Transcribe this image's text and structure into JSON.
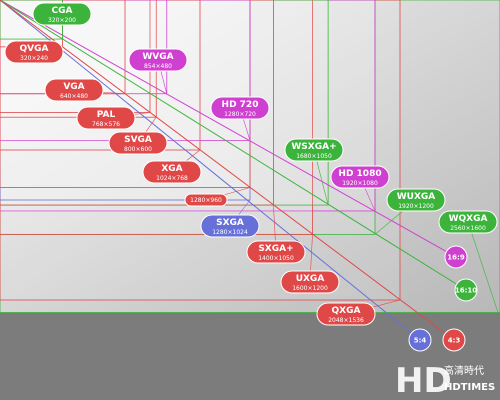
{
  "bubbles": [
    {
      "name": "CGA",
      "resolution": "320×200",
      "color": "#3cb43c"
    },
    {
      "name": "QVGA",
      "resolution": "320×240",
      "color": "#e04848"
    },
    {
      "name": "WVGA",
      "resolution": "854×480",
      "color": "#d040d0"
    },
    {
      "name": "VGA",
      "resolution": "640×480",
      "color": "#e04848"
    },
    {
      "name": "PAL",
      "resolution": "768×576",
      "color": "#e04848"
    },
    {
      "name": "HD 720",
      "resolution": "1280×720",
      "color": "#d040d0"
    },
    {
      "name": "SVGA",
      "resolution": "800×600",
      "color": "#e04848"
    },
    {
      "name": "WSXGA+",
      "resolution": "1680×1050",
      "color": "#3cb43c"
    },
    {
      "name": "XGA",
      "resolution": "1024×768",
      "color": "#e04848"
    },
    {
      "name": "HD 1080",
      "resolution": "1920×1080",
      "color": "#d040d0"
    },
    {
      "resolution": "1280×960",
      "color": "#e04848"
    },
    {
      "name": "WUXGA",
      "resolution": "1920×1200",
      "color": "#3cb43c"
    },
    {
      "name": "SXGA",
      "resolution": "1280×1024",
      "color": "#6670d8"
    },
    {
      "name": "WQXGA",
      "resolution": "2560×1600",
      "color": "#3cb43c"
    },
    {
      "name": "SXGA+",
      "resolution": "1400×1050",
      "color": "#e04848"
    },
    {
      "name": "UXGA",
      "resolution": "1600×1200",
      "color": "#e04848"
    },
    {
      "name": "QXGA",
      "resolution": "2048×1536",
      "color": "#e04848"
    }
  ],
  "aspect_ratios": [
    {
      "label": "16:9",
      "color": "#d040d0"
    },
    {
      "label": "16:10",
      "color": "#3cb43c"
    },
    {
      "label": "5:4",
      "color": "#6670d8"
    },
    {
      "label": "4:3",
      "color": "#e04848"
    }
  ],
  "logo": {
    "mark": "HD",
    "chinese": "高清時代",
    "english": "HDTIMES"
  }
}
